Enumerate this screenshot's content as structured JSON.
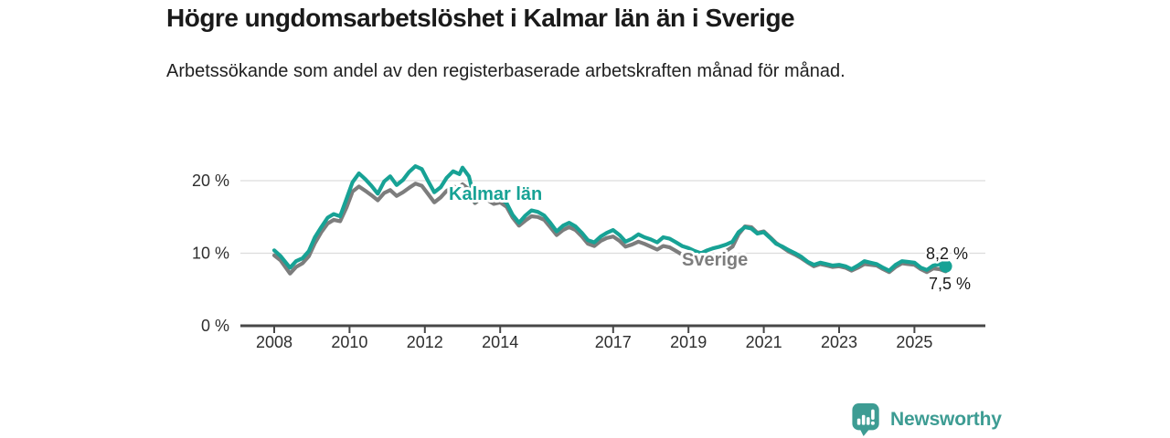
{
  "header": {
    "title": "Högre ungdomsarbetslöshet i Kalmar län än i Sverige",
    "subtitle": "Arbetssökande som andel av den registerbaserade arbetskraften månad för månad."
  },
  "footer": {
    "brand": "Newsworthy",
    "logo_icon": "newsworthy-chart-bubble-icon"
  },
  "colors": {
    "kalmar_line": "#17a295",
    "sverige_line": "#7d7d7d",
    "grid": "#dcdcdc",
    "axis": "#474747",
    "tick_text": "#2e2e2e",
    "brand": "#3d9c93",
    "title_text": "#1a1a1a"
  },
  "chart_data": {
    "type": "line",
    "title": "Högre ungdomsarbetslöshet i Kalmar län än i Sverige",
    "subtitle": "Arbetssökande som andel av den registerbaserade arbetskraften månad för månad.",
    "xlabel": "",
    "ylabel": "",
    "ylim": [
      0,
      23.5
    ],
    "xlim": [
      2007.1,
      2026.9
    ],
    "grid": "horizontal",
    "legend_position": "inline-labels",
    "yticks": [
      {
        "value": 0,
        "label": "0 %"
      },
      {
        "value": 10,
        "label": "10 %"
      },
      {
        "value": 20,
        "label": "20 %"
      }
    ],
    "xticks": [
      {
        "value": 2008,
        "label": "2008"
      },
      {
        "value": 2010,
        "label": "2010"
      },
      {
        "value": 2012,
        "label": "2012"
      },
      {
        "value": 2014,
        "label": "2014"
      },
      {
        "value": 2017,
        "label": "2017"
      },
      {
        "value": 2019,
        "label": "2019"
      },
      {
        "value": 2021,
        "label": "2021"
      },
      {
        "value": 2023,
        "label": "2023"
      },
      {
        "value": 2025,
        "label": "2025"
      }
    ],
    "x": [
      2008.0,
      2008.17,
      2008.42,
      2008.58,
      2008.75,
      2008.92,
      2009.08,
      2009.25,
      2009.42,
      2009.58,
      2009.75,
      2009.92,
      2010.08,
      2010.25,
      2010.42,
      2010.58,
      2010.75,
      2010.92,
      2011.08,
      2011.25,
      2011.42,
      2011.58,
      2011.75,
      2011.92,
      2012.08,
      2012.25,
      2012.42,
      2012.58,
      2012.75,
      2012.92,
      2013.0,
      2013.17,
      2013.33,
      2013.5,
      2013.67,
      2013.83,
      2014.0,
      2014.17,
      2014.33,
      2014.5,
      2014.67,
      2014.83,
      2015.0,
      2015.17,
      2015.33,
      2015.5,
      2015.67,
      2015.83,
      2016.0,
      2016.17,
      2016.33,
      2016.5,
      2016.67,
      2016.83,
      2017.0,
      2017.17,
      2017.33,
      2017.5,
      2017.67,
      2017.83,
      2018.0,
      2018.17,
      2018.33,
      2018.5,
      2018.67,
      2018.83,
      2019.0,
      2019.17,
      2019.33,
      2019.5,
      2019.67,
      2019.83,
      2020.0,
      2020.17,
      2020.33,
      2020.5,
      2020.67,
      2020.83,
      2021.0,
      2021.17,
      2021.33,
      2021.5,
      2021.67,
      2021.83,
      2022.0,
      2022.17,
      2022.33,
      2022.5,
      2022.67,
      2022.83,
      2023.0,
      2023.17,
      2023.33,
      2023.5,
      2023.67,
      2023.83,
      2024.0,
      2024.17,
      2024.33,
      2024.5,
      2024.67,
      2024.83,
      2025.0,
      2025.17,
      2025.33,
      2025.5,
      2025.67,
      2025.83
    ],
    "series": [
      {
        "name": "Kalmar län",
        "label": "Kalmar län",
        "color": "#17a295",
        "end_label": "8,2 %",
        "end_value": 8.2,
        "values": [
          10.4,
          9.6,
          8.0,
          8.9,
          9.3,
          10.3,
          12.2,
          13.6,
          14.9,
          15.4,
          15.1,
          17.5,
          19.8,
          21.0,
          20.2,
          19.3,
          18.2,
          19.9,
          20.6,
          19.4,
          20.1,
          21.2,
          22.0,
          21.6,
          20.0,
          18.4,
          19.1,
          20.4,
          21.3,
          20.9,
          21.8,
          20.6,
          17.2,
          18.7,
          18.1,
          17.4,
          17.6,
          16.9,
          15.3,
          14.2,
          15.2,
          15.9,
          15.7,
          15.2,
          14.2,
          13.0,
          13.8,
          14.2,
          13.7,
          12.8,
          11.8,
          11.5,
          12.3,
          12.8,
          13.2,
          12.5,
          11.6,
          12.0,
          12.6,
          12.2,
          11.9,
          11.5,
          12.2,
          12.0,
          11.5,
          11.0,
          10.7,
          10.3,
          10.0,
          10.4,
          10.7,
          10.9,
          11.2,
          11.6,
          12.9,
          13.6,
          13.4,
          12.7,
          12.9,
          12.1,
          11.3,
          10.9,
          10.4,
          10.0,
          9.5,
          8.8,
          8.4,
          8.7,
          8.5,
          8.3,
          8.4,
          8.2,
          7.8,
          8.3,
          8.9,
          8.7,
          8.5,
          8.0,
          7.6,
          8.4,
          8.9,
          8.8,
          8.7,
          8.0,
          7.7,
          8.3,
          8.5,
          8.2
        ]
      },
      {
        "name": "Sverige",
        "label": "Sverige",
        "color": "#7d7d7d",
        "end_label": "7,5 %",
        "end_value": 7.5,
        "values": [
          9.7,
          9.0,
          7.2,
          8.1,
          8.6,
          9.6,
          11.4,
          12.9,
          14.1,
          14.6,
          14.4,
          16.3,
          18.5,
          19.2,
          18.6,
          18.0,
          17.3,
          18.3,
          18.7,
          17.9,
          18.4,
          19.0,
          19.6,
          19.3,
          18.2,
          17.0,
          17.7,
          18.6,
          19.2,
          19.0,
          19.5,
          18.8,
          16.9,
          17.6,
          17.3,
          16.8,
          17.0,
          16.4,
          14.9,
          13.8,
          14.5,
          15.1,
          15.0,
          14.6,
          13.6,
          12.5,
          13.2,
          13.6,
          13.2,
          12.3,
          11.3,
          11.0,
          11.7,
          12.1,
          12.3,
          11.7,
          10.9,
          11.2,
          11.6,
          11.3,
          10.9,
          10.5,
          11.0,
          10.8,
          10.3,
          9.8,
          9.4,
          9.0,
          8.7,
          8.9,
          9.3,
          9.7,
          10.3,
          10.9,
          12.6,
          13.7,
          13.6,
          12.8,
          13.0,
          12.2,
          11.4,
          10.8,
          10.2,
          9.8,
          9.3,
          8.7,
          8.2,
          8.5,
          8.3,
          8.1,
          8.2,
          8.0,
          7.6,
          8.0,
          8.5,
          8.4,
          8.3,
          7.8,
          7.4,
          8.1,
          8.6,
          8.5,
          8.4,
          7.8,
          7.4,
          7.9,
          7.8,
          7.5
        ]
      }
    ]
  }
}
